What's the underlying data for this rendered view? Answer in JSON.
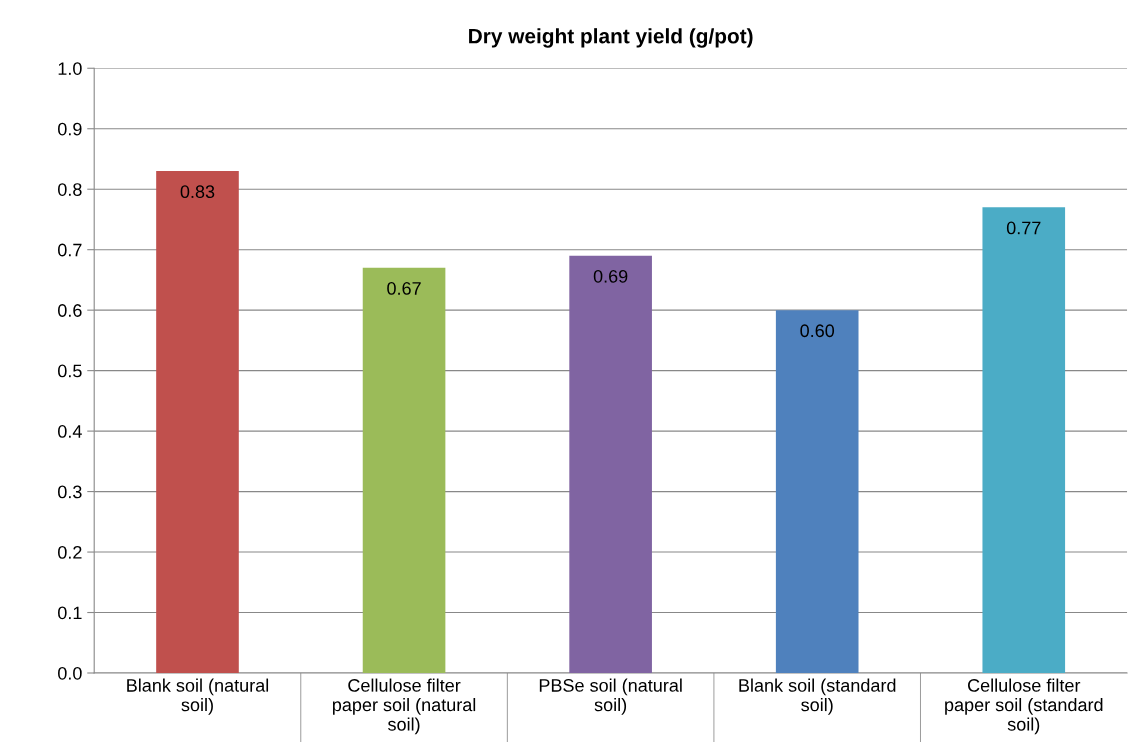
{
  "chart_data": {
    "type": "bar",
    "title": "Dry weight plant yield (g/pot)",
    "categories": [
      "Blank soil (natural soil)",
      "Cellulose filter paper soil (natural soil)",
      "PBSe soil (natural soil)",
      "Blank soil (standard soil)",
      "Cellulose filter paper soil (standard soil)"
    ],
    "values": [
      0.83,
      0.67,
      0.69,
      0.6,
      0.77
    ],
    "value_labels": [
      "0.83",
      "0.67",
      "0.69",
      "0.60",
      "0.77"
    ],
    "colors": [
      "#c0504d",
      "#9bbb59",
      "#8064a2",
      "#4f81bd",
      "#4bacc6"
    ],
    "ylim": [
      0,
      1.0
    ],
    "yticks": [
      {
        "value": 0,
        "label": "0.0"
      },
      {
        "value": 0.1,
        "label": "0.1"
      },
      {
        "value": 0.2,
        "label": "0.2"
      },
      {
        "value": 0.3,
        "label": "0.3"
      },
      {
        "value": 0.4,
        "label": "0.4"
      },
      {
        "value": 0.5,
        "label": "0.5"
      },
      {
        "value": 0.6,
        "label": "0.6"
      },
      {
        "value": 0.7,
        "label": "0.7"
      },
      {
        "value": 0.8,
        "label": "0.8"
      },
      {
        "value": 0.9,
        "label": "0.9"
      },
      {
        "value": 1.0,
        "label": "1.0"
      }
    ],
    "grid": "y"
  }
}
